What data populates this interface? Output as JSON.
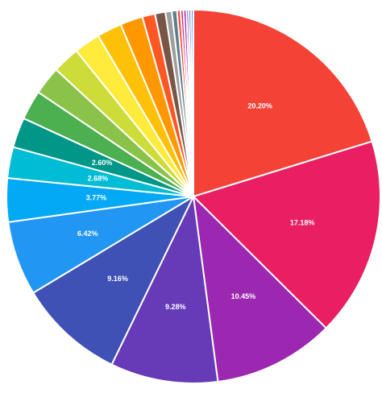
{
  "chart_data": {
    "type": "pie",
    "title": "",
    "start_angle_deg": 0,
    "direction": "clockwise",
    "slices": [
      {
        "value": 20.2,
        "label": "20.20%",
        "color": "#f44336"
      },
      {
        "value": 17.18,
        "label": "17.18%",
        "color": "#e91e63"
      },
      {
        "value": 10.45,
        "label": "10.45%",
        "color": "#9c27b0"
      },
      {
        "value": 9.28,
        "label": "9.28%",
        "color": "#673ab7"
      },
      {
        "value": 9.16,
        "label": "9.16%",
        "color": "#3f51b5"
      },
      {
        "value": 6.42,
        "label": "6.42%",
        "color": "#2196f3"
      },
      {
        "value": 3.77,
        "label": "3.77%",
        "color": "#03a9f4"
      },
      {
        "value": 2.68,
        "label": "2.68%",
        "color": "#00bcd4"
      },
      {
        "value": 2.6,
        "label": "2.60%",
        "color": "#009688"
      },
      {
        "value": 2.55,
        "label": "",
        "color": "#4caf50"
      },
      {
        "value": 2.45,
        "label": "",
        "color": "#8bc34a"
      },
      {
        "value": 2.35,
        "label": "",
        "color": "#cddc39"
      },
      {
        "value": 2.25,
        "label": "",
        "color": "#ffeb3b"
      },
      {
        "value": 2.15,
        "label": "",
        "color": "#ffc107"
      },
      {
        "value": 1.95,
        "label": "",
        "color": "#ff9800"
      },
      {
        "value": 1.1,
        "label": "",
        "color": "#ff5722"
      },
      {
        "value": 0.9,
        "label": "",
        "color": "#795548"
      },
      {
        "value": 0.55,
        "label": "",
        "color": "#9e9e9e"
      },
      {
        "value": 0.45,
        "label": "",
        "color": "#607d8b"
      },
      {
        "value": 0.3,
        "label": "",
        "color": "#f44336"
      },
      {
        "value": 0.25,
        "label": "",
        "color": "#e91e63"
      },
      {
        "value": 0.25,
        "label": "",
        "color": "#9c27b0"
      },
      {
        "value": 0.2,
        "label": "",
        "color": "#673ab7"
      },
      {
        "value": 0.2,
        "label": "",
        "color": "#3f51b5"
      },
      {
        "value": 0.2,
        "label": "",
        "color": "#2196f3"
      }
    ]
  }
}
